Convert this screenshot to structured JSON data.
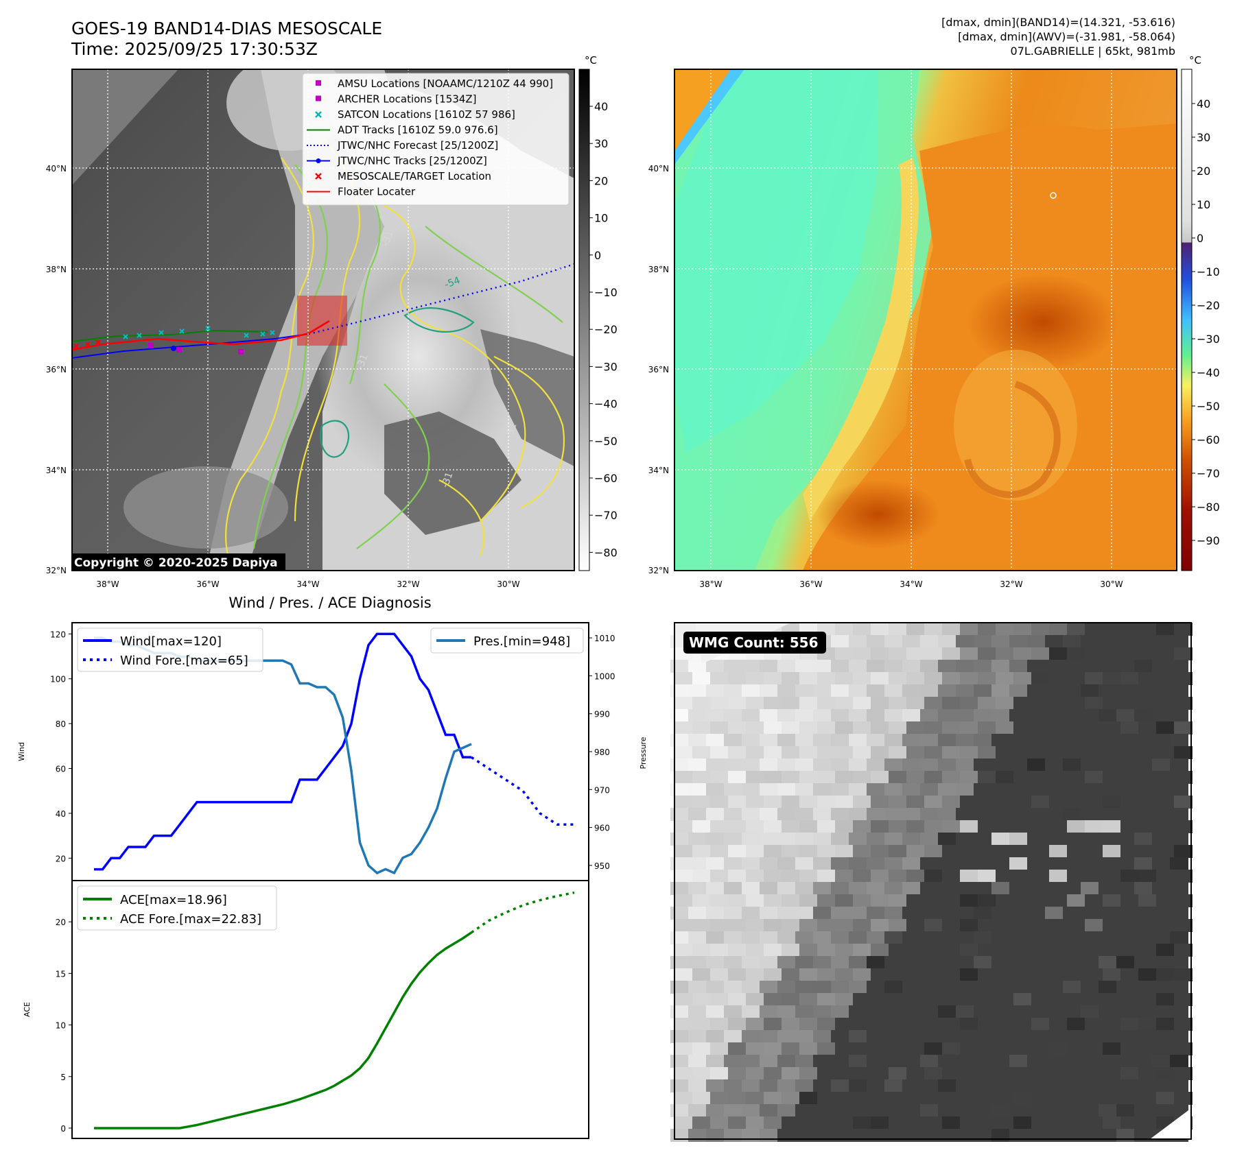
{
  "header": {
    "title_line1": "GOES-19 BAND14-DIAS MESOSCALE",
    "title_line2": "Time: 2025/09/25 17:30:53Z",
    "right_line1": "[dmax, dmin](BAND14)=(14.321, -53.616)",
    "right_line2": "[dmax, dmin](AWV)=(-31.981, -58.064)",
    "right_line3": "07L.GABRIELLE | 65kt, 981mb"
  },
  "map": {
    "lat_labels": [
      "40°N",
      "38°N",
      "36°N",
      "34°N",
      "32°N"
    ],
    "lon_labels": [
      "38°W",
      "36°W",
      "34°W",
      "32°W",
      "30°W"
    ],
    "copyright": "Copyright © 2020-2025 Dapiya",
    "contour_labels": [
      "-31",
      "-31",
      "-31",
      "-54",
      "-31"
    ],
    "legend": [
      {
        "label": "AMSU Locations [NOAAMC/1210Z 44 990]",
        "color": "#c000c0",
        "marker": "square"
      },
      {
        "label": "ARCHER Locations [1534Z]",
        "color": "#c000c0",
        "marker": "square"
      },
      {
        "label": "SATCON Locations [1610Z 57 986]",
        "color": "#00b4b4",
        "marker": "x"
      },
      {
        "label": "ADT Tracks [1610Z 59.0 976.6]",
        "color": "#008000",
        "marker": "line"
      },
      {
        "label": "JTWC/NHC Forecast [25/1200Z]",
        "color": "#0000ff",
        "marker": "dotted"
      },
      {
        "label": "JTWC/NHC Tracks [25/1200Z]",
        "color": "#0000ff",
        "marker": "line-dot"
      },
      {
        "label": "MESOSCALE/TARGET Location",
        "color": "#ff0000",
        "marker": "x"
      },
      {
        "label": "Floater Locater",
        "color": "#ff0000",
        "marker": "line"
      }
    ]
  },
  "colorbar_gray": {
    "unit": "°C",
    "ticks": [
      "40",
      "30",
      "20",
      "10",
      "0",
      "−10",
      "−20",
      "−30",
      "−40",
      "−50",
      "−60",
      "−70",
      "−80"
    ]
  },
  "colorbar_color": {
    "unit": "°C",
    "ticks": [
      "40",
      "30",
      "20",
      "10",
      "0",
      "−10",
      "−20",
      "−30",
      "−40",
      "−50",
      "−60",
      "−70",
      "−80",
      "−90"
    ]
  },
  "wmg": {
    "label": "WMG Count: 556"
  },
  "chart_data": [
    {
      "type": "line",
      "title": "Wind / Pres. / ACE Diagnosis",
      "ylabel": "Wind",
      "ylabel_right": "Pressure",
      "ylim": [
        10,
        125
      ],
      "ylim_right": [
        946,
        1014
      ],
      "yticks": [
        20,
        40,
        60,
        80,
        100,
        120
      ],
      "yticks_right": [
        950,
        960,
        970,
        980,
        990,
        1000,
        1010
      ],
      "series": [
        {
          "name": "Wind[max=120]",
          "color": "#0000ff",
          "style": "solid",
          "axis": "left",
          "x": [
            0,
            1,
            2,
            3,
            4,
            5,
            6,
            7,
            8,
            9,
            10,
            11,
            12,
            13,
            14,
            15,
            16,
            17,
            18,
            19,
            20,
            21,
            22,
            23,
            24,
            25,
            26,
            27,
            28,
            29,
            30,
            31,
            32,
            33,
            34,
            35,
            36,
            37,
            38,
            39,
            40,
            41,
            42,
            43,
            44
          ],
          "values": [
            15,
            15,
            20,
            20,
            25,
            25,
            25,
            30,
            30,
            30,
            35,
            40,
            45,
            45,
            45,
            45,
            45,
            45,
            45,
            45,
            45,
            45,
            45,
            45,
            55,
            55,
            55,
            60,
            65,
            70,
            80,
            100,
            115,
            120,
            120,
            120,
            115,
            110,
            100,
            95,
            85,
            75,
            75,
            65,
            65
          ]
        },
        {
          "name": "Wind Fore.[max=65]",
          "color": "#0000ff",
          "style": "dotted",
          "axis": "left",
          "x": [
            44,
            46,
            48,
            50,
            52,
            54,
            56
          ],
          "values": [
            65,
            60,
            55,
            50,
            40,
            35,
            35
          ]
        },
        {
          "name": "Pres.[min=948]",
          "color": "#1f77b4",
          "style": "solid",
          "axis": "right",
          "x": [
            0,
            1,
            2,
            3,
            4,
            5,
            6,
            7,
            8,
            9,
            10,
            11,
            12,
            13,
            14,
            15,
            16,
            17,
            18,
            19,
            20,
            21,
            22,
            23,
            24,
            25,
            26,
            27,
            28,
            29,
            30,
            31,
            32,
            33,
            34,
            35,
            36,
            37,
            38,
            39,
            40,
            41,
            42,
            43,
            44
          ],
          "values": [
            1010,
            1010,
            1009,
            1009,
            1008,
            1008,
            1007,
            1006,
            1006,
            1006,
            1005,
            1005,
            1004,
            1004,
            1004,
            1004,
            1004,
            1004,
            1004,
            1004,
            1004,
            1004,
            1004,
            1003,
            998,
            998,
            997,
            997,
            995,
            989,
            975,
            956,
            950,
            948,
            949,
            948,
            952,
            953,
            956,
            960,
            965,
            973,
            980,
            981,
            982
          ]
        }
      ]
    },
    {
      "type": "line",
      "ylabel": "ACE",
      "ylim": [
        -1,
        24
      ],
      "yticks": [
        0,
        5,
        10,
        15,
        20
      ],
      "series": [
        {
          "name": "ACE[max=18.96]",
          "color": "#008000",
          "style": "solid",
          "x": [
            0,
            2,
            4,
            6,
            8,
            10,
            12,
            14,
            16,
            18,
            20,
            22,
            24,
            25,
            26,
            27,
            28,
            29,
            30,
            31,
            32,
            33,
            34,
            35,
            36,
            37,
            38,
            39,
            40,
            41,
            42,
            43,
            44
          ],
          "values": [
            0,
            0,
            0,
            0,
            0,
            0,
            0.3,
            0.7,
            1.1,
            1.5,
            1.9,
            2.3,
            2.8,
            3.1,
            3.4,
            3.7,
            4.1,
            4.6,
            5.1,
            5.8,
            6.8,
            8.2,
            9.7,
            11.2,
            12.7,
            14.0,
            15.1,
            16.0,
            16.8,
            17.4,
            17.9,
            18.4,
            18.96
          ]
        },
        {
          "name": "ACE Fore.[max=22.83]",
          "color": "#008000",
          "style": "dotted",
          "x": [
            44,
            46,
            48,
            50,
            52,
            54,
            56
          ],
          "values": [
            18.96,
            20.1,
            20.9,
            21.6,
            22.1,
            22.5,
            22.83
          ]
        }
      ]
    }
  ]
}
